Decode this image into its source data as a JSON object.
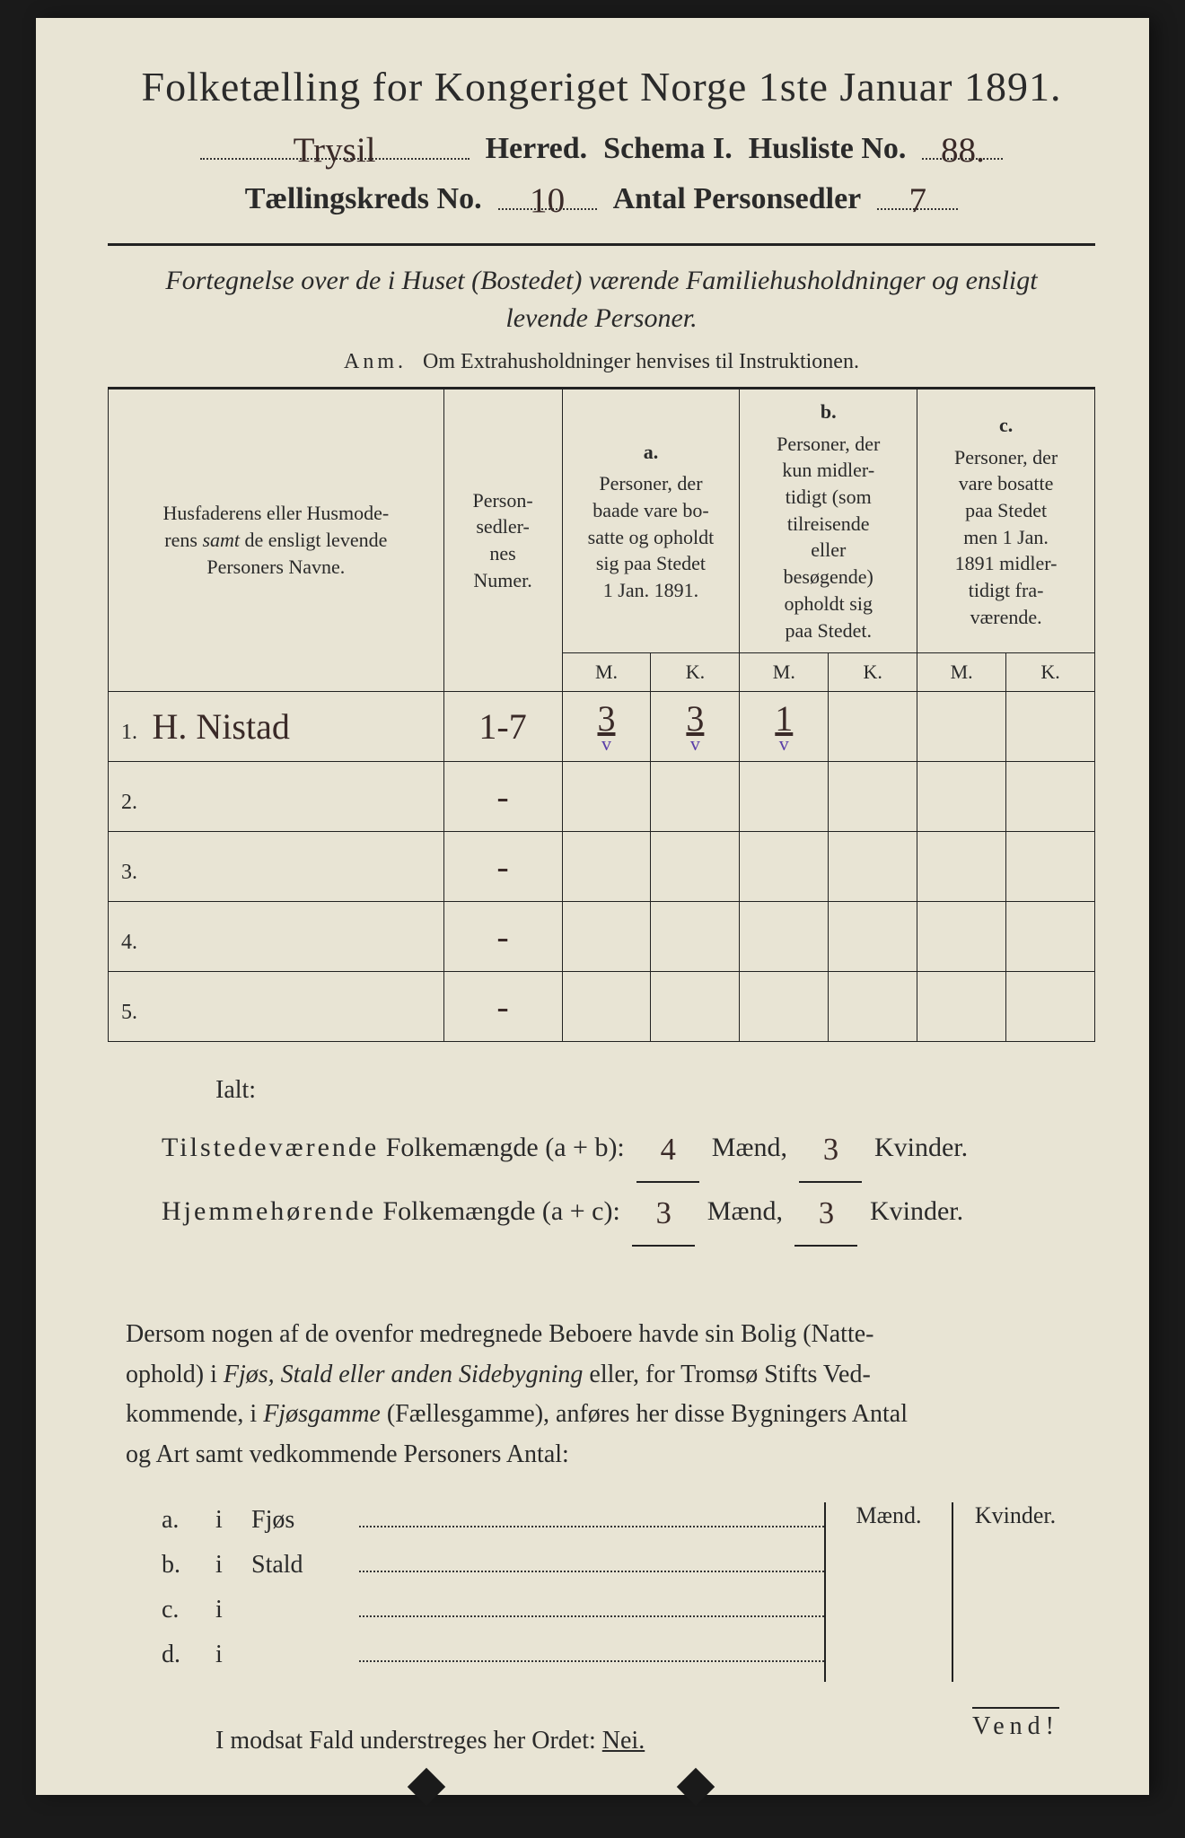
{
  "header": {
    "title_pre": "Folketælling for Kongeriget Norge 1ste Januar",
    "year": "1891.",
    "herred_value": "Trysil",
    "herred_label": "Herred.",
    "schema_label": "Schema I.",
    "husliste_label": "Husliste No.",
    "husliste_value": "88.",
    "kreds_label": "Tællingskreds No.",
    "kreds_value": "10",
    "antal_label": "Antal Personsedler",
    "antal_value": "7"
  },
  "subhead": {
    "line1": "Fortegnelse over de i Huset (Bostedet) værende Familiehusholdninger og ensligt",
    "line2": "levende Personer.",
    "anm_label": "Anm.",
    "anm_text": "Om Extrahusholdninger henvises til Instruktionen."
  },
  "table": {
    "head": {
      "names": "Husfaderens eller Husmode-\nrens samt de ensligt levende\nPersoners Navne.",
      "numer": "Person-\nsedler-\nnes\nNumer.",
      "a_label": "a.",
      "a_text": "Personer, der baade vare bo-\nsatte og opholdt sig paa Stedet 1 Jan. 1891.",
      "b_label": "b.",
      "b_text": "Personer, der kun midler-\ntidigt (som tilreisende eller besøgende) opholdt sig paa Stedet.",
      "c_label": "c.",
      "c_text": "Personer, der vare bosatte paa Stedet men 1 Jan. 1891 midler-\ntidigt fra-\nværende.",
      "M": "M.",
      "K": "K."
    },
    "rows": [
      {
        "n": "1.",
        "name": "H. Nistad",
        "numer": "1-7",
        "aM": "3",
        "aK": "3",
        "bM": "1",
        "bK": "",
        "cM": "",
        "cK": "",
        "tick_aM": true,
        "tick_aK": true,
        "tick_bM": true
      },
      {
        "n": "2.",
        "name": "",
        "numer": "-",
        "aM": "",
        "aK": "",
        "bM": "",
        "bK": "",
        "cM": "",
        "cK": ""
      },
      {
        "n": "3.",
        "name": "",
        "numer": "-",
        "aM": "",
        "aK": "",
        "bM": "",
        "bK": "",
        "cM": "",
        "cK": ""
      },
      {
        "n": "4.",
        "name": "",
        "numer": "-",
        "aM": "",
        "aK": "",
        "bM": "",
        "bK": "",
        "cM": "",
        "cK": ""
      },
      {
        "n": "5.",
        "name": "",
        "numer": "-",
        "aM": "",
        "aK": "",
        "bM": "",
        "bK": "",
        "cM": "",
        "cK": ""
      }
    ]
  },
  "totals": {
    "ialt": "Ialt:",
    "row1_label": "Tilstedeværende Folkemængde (a + b):",
    "row2_label": "Hjemmehørende Folkemængde (a + c):",
    "maend": "Mænd,",
    "kvinder": "Kvinder.",
    "ab_m": "4",
    "ab_k": "3",
    "ac_m": "3",
    "ac_k": "3"
  },
  "para": "Dersom nogen af de ovenfor medregnede Beboere havde sin Bolig (Natte-ophold) i Fjøs, Stald eller anden Sidebygning eller, for Tromsø Stifts Ved-kommende, i Fjøsgamme (Fællesgamme), anføres her disse Bygningers Antal og Art samt vedkommende Personers Antal:",
  "side": {
    "maend": "Mænd.",
    "kvinder": "Kvinder.",
    "rows": [
      {
        "label": "a.",
        "i": "i",
        "what": "Fjøs"
      },
      {
        "label": "b.",
        "i": "i",
        "what": "Stald"
      },
      {
        "label": "c.",
        "i": "i",
        "what": ""
      },
      {
        "label": "d.",
        "i": "i",
        "what": ""
      }
    ]
  },
  "nei": {
    "text": "I modsat Fald understreges her Ordet:",
    "word": "Nei."
  },
  "vend": "Vend!",
  "colors": {
    "paper": "#e8e4d4",
    "ink": "#2a2a2a",
    "handwriting": "#3a2a28",
    "tick": "#5a3ea8",
    "background": "#1a1a1a"
  }
}
